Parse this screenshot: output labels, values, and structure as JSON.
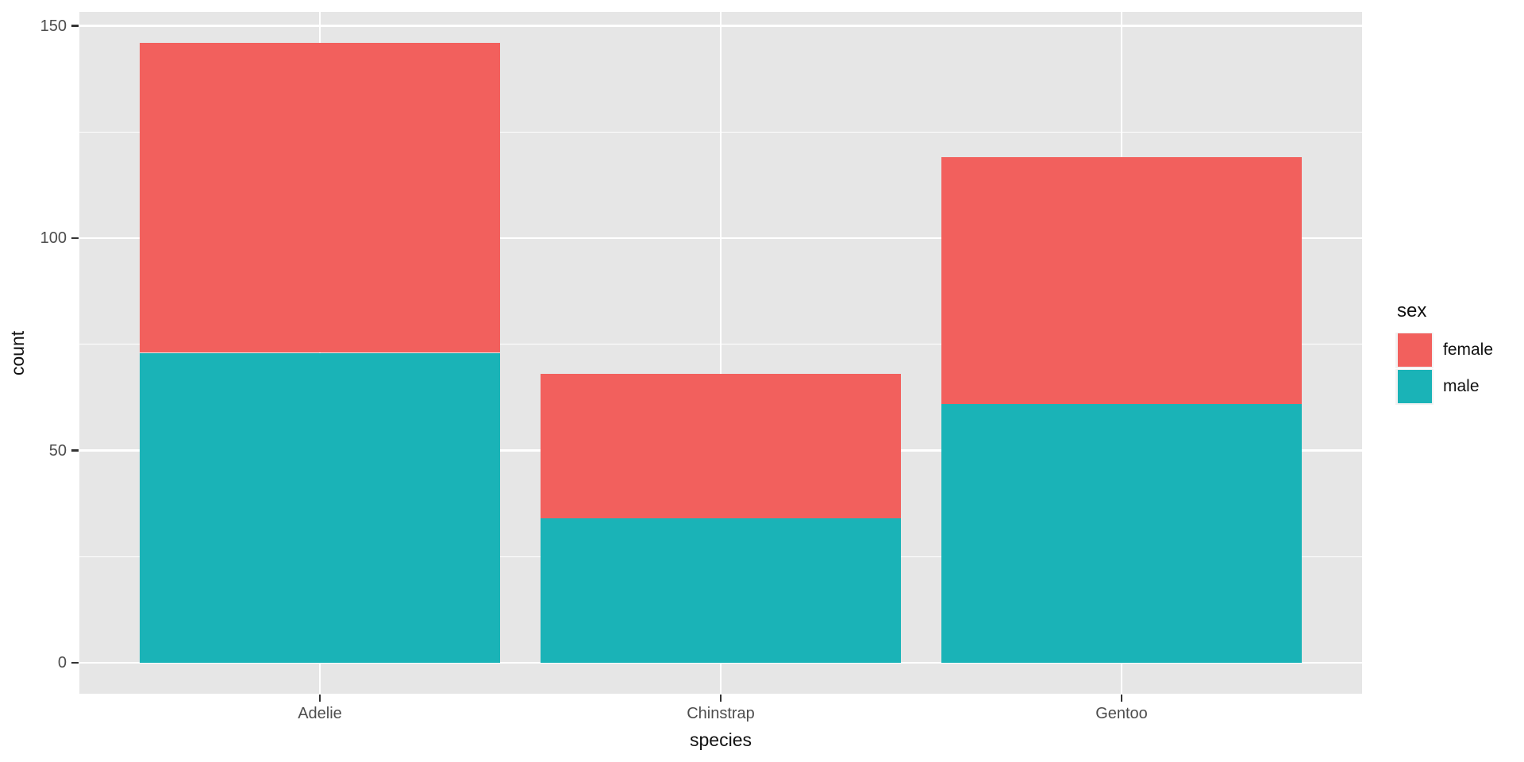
{
  "chart_data": {
    "type": "bar",
    "stacked": true,
    "title": "",
    "xlabel": "species",
    "ylabel": "count",
    "categories": [
      "Adelie",
      "Chinstrap",
      "Gentoo"
    ],
    "series": [
      {
        "name": "female",
        "color": "#F2605D",
        "values": [
          73,
          34,
          58
        ]
      },
      {
        "name": "male",
        "color": "#1AB3B7",
        "values": [
          73,
          34,
          61
        ]
      }
    ],
    "stack_bottom_to_top": [
      "male",
      "female"
    ],
    "totals": [
      146,
      68,
      119
    ],
    "y_ticks": [
      0,
      50,
      100,
      150
    ],
    "y_minor_ticks": [
      25,
      75,
      125
    ],
    "ylim": [
      -7.3,
      153.3
    ],
    "x_unit_positions": [
      1,
      2,
      3
    ],
    "x_unit_lim": [
      0.4,
      3.6
    ],
    "bar_width_units": 0.9,
    "grid": true,
    "legend": {
      "title": "sex",
      "position": "right",
      "entries": [
        {
          "label": "female",
          "color": "#F2605D"
        },
        {
          "label": "male",
          "color": "#1AB3B7"
        }
      ]
    },
    "style": {
      "background": "#FFFFFF",
      "panel_bg": "#E6E6E6",
      "grid_color": "#FFFFFF",
      "tick_color": "#333333",
      "tick_label_color": "#4D4D4D",
      "axis_title_color": "#111111",
      "legend_key_bg": "#F2F2F2"
    }
  }
}
